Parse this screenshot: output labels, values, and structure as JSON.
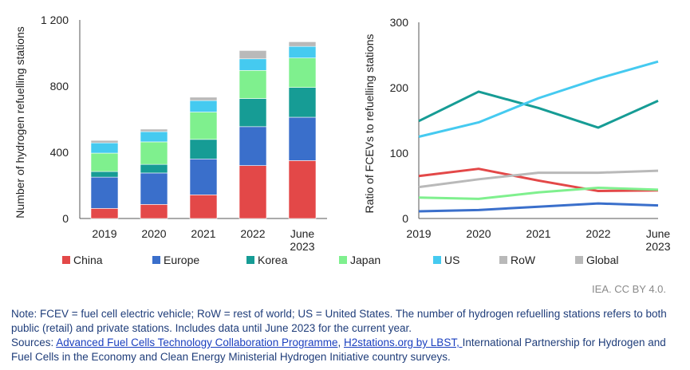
{
  "chart_data": [
    {
      "type": "bar",
      "stacked": true,
      "categories": [
        "2019",
        "2020",
        "2021",
        "2022",
        "June\n2023"
      ],
      "ylabel": "Number of hydrogen refuelling stations",
      "ylim": [
        0,
        1200
      ],
      "yticks": [
        "0",
        "400",
        "800",
        "1 200"
      ],
      "ytick_values": [
        0,
        400,
        800,
        1200
      ],
      "series": [
        {
          "name": "China",
          "color": "#e34848",
          "values": [
            61,
            85,
            143,
            320,
            350
          ]
        },
        {
          "name": "Europe",
          "color": "#3a6fcb",
          "values": [
            189,
            190,
            217,
            235,
            262
          ]
        },
        {
          "name": "Korea",
          "color": "#169c95",
          "values": [
            34,
            52,
            118,
            170,
            180
          ]
        },
        {
          "name": "Japan",
          "color": "#7ff08e",
          "values": [
            111,
            136,
            165,
            170,
            178
          ]
        },
        {
          "name": "US",
          "color": "#45caf0",
          "values": [
            62,
            62,
            70,
            70,
            70
          ]
        },
        {
          "name": "RoW",
          "color": "#b9b9b9",
          "values": [
            15,
            15,
            20,
            50,
            28
          ]
        }
      ]
    },
    {
      "type": "line",
      "x": [
        "2019",
        "2020",
        "2021",
        "2022",
        "June\n2023"
      ],
      "ylabel": "Ratio of FCEVs to refuelling stations",
      "ylim": [
        0,
        300
      ],
      "yticks": [
        "0",
        "100",
        "200",
        "300"
      ],
      "ytick_values": [
        0,
        100,
        200,
        300
      ],
      "series": [
        {
          "name": "China",
          "color": "#e34848",
          "values": [
            65,
            76,
            58,
            42,
            43
          ]
        },
        {
          "name": "Europe",
          "color": "#3a6fcb",
          "values": [
            11,
            13,
            18,
            23,
            20
          ]
        },
        {
          "name": "Korea",
          "color": "#169c95",
          "values": [
            149,
            194,
            169,
            139,
            180
          ]
        },
        {
          "name": "Japan",
          "color": "#7ff08e",
          "values": [
            32,
            30,
            40,
            47,
            44
          ]
        },
        {
          "name": "US",
          "color": "#45caf0",
          "values": [
            125,
            147,
            184,
            214,
            240
          ]
        },
        {
          "name": "Global",
          "color": "#b9b9b9",
          "values": [
            48,
            60,
            70,
            70,
            73
          ]
        }
      ]
    }
  ],
  "legend": [
    {
      "name": "China",
      "color": "#e34848"
    },
    {
      "name": "Europe",
      "color": "#3a6fcb"
    },
    {
      "name": "Korea",
      "color": "#169c95"
    },
    {
      "name": "Japan",
      "color": "#7ff08e"
    },
    {
      "name": "US",
      "color": "#45caf0"
    },
    {
      "name": "RoW",
      "color": "#b9b9b9"
    },
    {
      "name": "Global",
      "color": "#b9b9b9"
    }
  ],
  "credit": "IEA. CC BY 4.0.",
  "note": "Note: FCEV = fuel cell electric vehicle; RoW = rest of world; US = United States. The number of hydrogen refuelling stations refers to both public (retail) and private stations. Includes data until June 2023 for the current year.",
  "sources": {
    "prefix": "Sources: ",
    "link1": "Advanced Fuel Cells Technology Collaboration Programme",
    "sep": ", ",
    "link2": "H2stations.org by LBST, ",
    "rest": "International Partnership for Hydrogen and Fuel Cells in the Economy and Clean Energy Ministerial Hydrogen Initiative country surveys."
  }
}
